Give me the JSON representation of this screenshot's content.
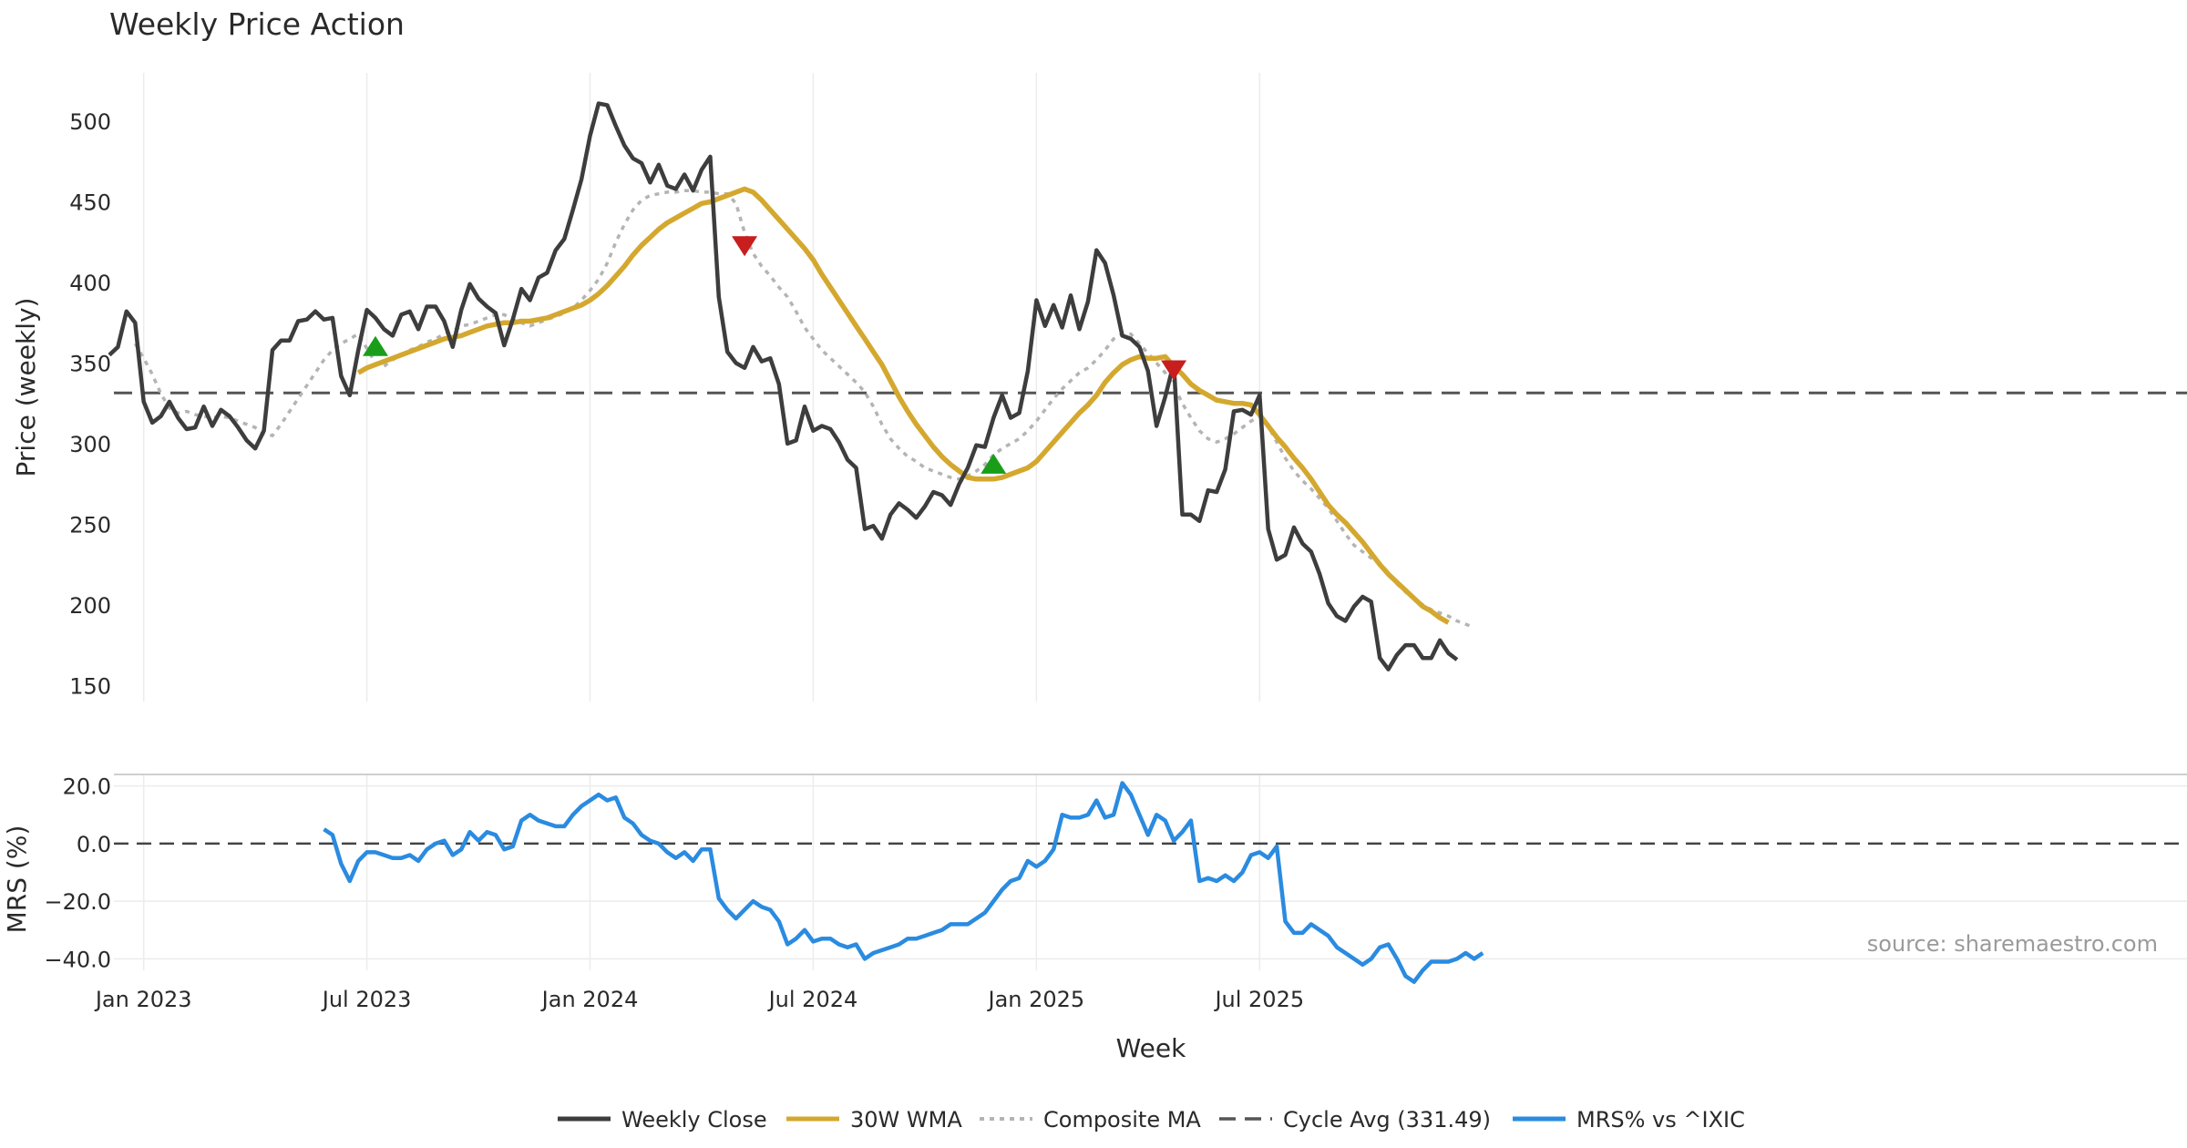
{
  "chart_data": [
    {
      "type": "line",
      "title": "Weekly Price Action",
      "xlabel": "",
      "ylabel": "Price (weekly)",
      "ylim": [
        140,
        530
      ],
      "yticks": [
        150,
        200,
        250,
        300,
        350,
        400,
        450,
        500
      ],
      "x_start": "2022-12-05",
      "x_step_days": 7,
      "cycle_avg": 331.49,
      "series": [
        {
          "name": "Weekly Close",
          "color": "#3d3d3d",
          "start_index": 0,
          "values": [
            355,
            360,
            382,
            375,
            326,
            313,
            317,
            326,
            316,
            309,
            310,
            323,
            311,
            321,
            317,
            310,
            302,
            297,
            308,
            358,
            364,
            364,
            376,
            377,
            382,
            377,
            378,
            342,
            330,
            358,
            383,
            378,
            371,
            367,
            380,
            382,
            371,
            385,
            385,
            376,
            360,
            383,
            399,
            390,
            385,
            381,
            361,
            377,
            396,
            389,
            403,
            406,
            420,
            427,
            445,
            464,
            491,
            511,
            510,
            497,
            485,
            477,
            474,
            462,
            473,
            460,
            458,
            467,
            457,
            470,
            478,
            391,
            357,
            350,
            347,
            360,
            351,
            353,
            337,
            300,
            302,
            323,
            308,
            311,
            309,
            301,
            290,
            285,
            247,
            249,
            241,
            256,
            263,
            259,
            254,
            261,
            270,
            268,
            262,
            275,
            285,
            299,
            298,
            316,
            330,
            316,
            319,
            345,
            389,
            373,
            386,
            372,
            392,
            371,
            388,
            420,
            412,
            392,
            367,
            365,
            360,
            345,
            311,
            329,
            350,
            256,
            256,
            252,
            271,
            270,
            284,
            320,
            321,
            318,
            330,
            247,
            228,
            231,
            248,
            238,
            233,
            219,
            201,
            193,
            190,
            199,
            205,
            202,
            167,
            160,
            169,
            175,
            175,
            167,
            167,
            178,
            170,
            166
          ]
        },
        {
          "name": "30W WMA",
          "color": "#d4a82f",
          "start_index": 29,
          "values": [
            344,
            347,
            349,
            351,
            353,
            355,
            357,
            359,
            361,
            363,
            365,
            366,
            367,
            369,
            371,
            373,
            374,
            375,
            375,
            376,
            376,
            377,
            378,
            380,
            382,
            384,
            386,
            389,
            393,
            398,
            404,
            410,
            417,
            423,
            428,
            433,
            437,
            440,
            443,
            446,
            449,
            450,
            452,
            454,
            456,
            458,
            456,
            451,
            445,
            439,
            433,
            427,
            421,
            414,
            405,
            397,
            389,
            381,
            373,
            365,
            357,
            349,
            339,
            329,
            320,
            312,
            305,
            298,
            292,
            287,
            283,
            279,
            278,
            278,
            278,
            279,
            281,
            283,
            285,
            289,
            295,
            301,
            307,
            313,
            319,
            324,
            330,
            338,
            344,
            349,
            352,
            354,
            353,
            353,
            354,
            348,
            343,
            337,
            333,
            330,
            327,
            326,
            325,
            325,
            324,
            318,
            311,
            304,
            298,
            291,
            285,
            278,
            270,
            262,
            256,
            251,
            245,
            239,
            232,
            225,
            219,
            214,
            209,
            204,
            199,
            196,
            192,
            189
          ]
        },
        {
          "name": "Composite MA",
          "color": "#b4b4b4",
          "start_index": 3,
          "values": [
            362,
            353,
            343,
            331,
            322,
            319,
            320,
            318,
            317,
            316,
            317,
            316,
            314,
            312,
            310,
            306,
            305,
            312,
            320,
            328,
            336,
            344,
            352,
            358,
            362,
            365,
            368,
            359,
            350,
            348,
            352,
            355,
            358,
            360,
            363,
            365,
            368,
            370,
            373,
            374,
            376,
            378,
            380,
            380,
            377,
            375,
            373,
            375,
            377,
            379,
            381,
            384,
            389,
            395,
            402,
            412,
            425,
            436,
            445,
            451,
            454,
            455,
            456,
            456,
            457,
            457,
            456,
            456,
            455,
            455,
            449,
            431,
            418,
            410,
            404,
            397,
            391,
            382,
            372,
            365,
            358,
            353,
            348,
            343,
            338,
            332,
            323,
            312,
            303,
            297,
            292,
            289,
            285,
            283,
            281,
            279,
            278,
            280,
            283,
            287,
            293,
            297,
            300,
            303,
            308,
            314,
            321,
            328,
            334,
            339,
            344,
            347,
            352,
            358,
            365,
            368,
            368,
            362,
            356,
            350,
            344,
            336,
            325,
            316,
            308,
            303,
            301,
            303,
            306,
            310,
            314,
            317,
            311,
            301,
            291,
            283,
            277,
            272,
            266,
            260,
            252,
            244,
            237,
            233,
            229,
            226,
            220,
            213,
            208,
            204,
            200,
            197,
            195,
            193,
            190,
            188,
            186
          ]
        },
        {
          "name": "Cycle Avg (331.49)",
          "color": "#555555",
          "dashed": true,
          "value": 331.49
        }
      ],
      "markers": [
        {
          "type": "buy",
          "index": 31,
          "value": 360,
          "color": "#1a9e1a"
        },
        {
          "type": "sell",
          "index": 74,
          "value": 423,
          "color": "#c81e1e"
        },
        {
          "type": "buy",
          "index": 103,
          "value": 287,
          "color": "#1a9e1a"
        },
        {
          "type": "sell",
          "index": 124,
          "value": 346,
          "color": "#c81e1e"
        }
      ]
    },
    {
      "type": "line",
      "title": "",
      "xlabel": "Week",
      "ylabel": "MRS (%)",
      "ylim": [
        -44,
        24
      ],
      "yticks": [
        20.0,
        0.0,
        -20.0,
        -40.0
      ],
      "ytick_labels": [
        "20.0",
        "0.0",
        "−20.0",
        "−40.0"
      ],
      "reference_line": 0,
      "x_ticks": [
        {
          "label": "Jan 2023",
          "index": 4
        },
        {
          "label": "Jul 2023",
          "index": 30
        },
        {
          "label": "Jan 2024",
          "index": 56
        },
        {
          "label": "Jul 2024",
          "index": 82
        },
        {
          "label": "Jan 2025",
          "index": 108
        },
        {
          "label": "Jul 2025",
          "index": 134
        }
      ],
      "series": [
        {
          "name": "MRS% vs ^IXIC",
          "color": "#2a8be0",
          "start_index": 25,
          "values": [
            5,
            3,
            -7,
            -13,
            -6,
            -3,
            -3,
            -4,
            -5,
            -5,
            -4,
            -6,
            -2,
            0,
            1,
            -4,
            -2,
            4,
            1,
            4,
            3,
            -2,
            -1,
            8,
            10,
            8,
            7,
            6,
            6,
            10,
            13,
            15,
            17,
            15,
            16,
            9,
            7,
            3,
            1,
            0,
            -3,
            -5,
            -3,
            -6,
            -2,
            -2,
            -19,
            -23,
            -26,
            -23,
            -20,
            -22,
            -23,
            -27,
            -35,
            -33,
            -30,
            -34,
            -33,
            -33,
            -35,
            -36,
            -35,
            -40,
            -38,
            -37,
            -36,
            -35,
            -33,
            -33,
            -32,
            -31,
            -30,
            -28,
            -28,
            -28,
            -26,
            -24,
            -20,
            -16,
            -13,
            -12,
            -6,
            -8,
            -6,
            -2,
            10,
            9,
            9,
            10,
            15,
            9,
            10,
            21,
            17,
            10,
            3,
            10,
            8,
            1,
            4,
            8,
            -13,
            -12,
            -13,
            -11,
            -13,
            -10,
            -4,
            -3,
            -5,
            -1,
            -27,
            -31,
            -31,
            -28,
            -30,
            -32,
            -36,
            -38,
            -40,
            -42,
            -40,
            -36,
            -35,
            -40,
            -46,
            -48,
            -44,
            -41,
            -41,
            -41,
            -40,
            -38,
            -40,
            -38
          ]
        }
      ],
      "annotations": [
        "source: sharemaestro.com"
      ]
    }
  ],
  "legend": [
    {
      "label": "Weekly Close",
      "color": "#3d3d3d",
      "style": "solid"
    },
    {
      "label": "30W WMA",
      "color": "#d4a82f",
      "style": "solid"
    },
    {
      "label": "Composite MA",
      "color": "#b4b4b4",
      "style": "dotted"
    },
    {
      "label": "Cycle Avg (331.49)",
      "color": "#555555",
      "style": "dashed"
    },
    {
      "label": "MRS% vs ^IXIC",
      "color": "#2a8be0",
      "style": "solid"
    }
  ]
}
